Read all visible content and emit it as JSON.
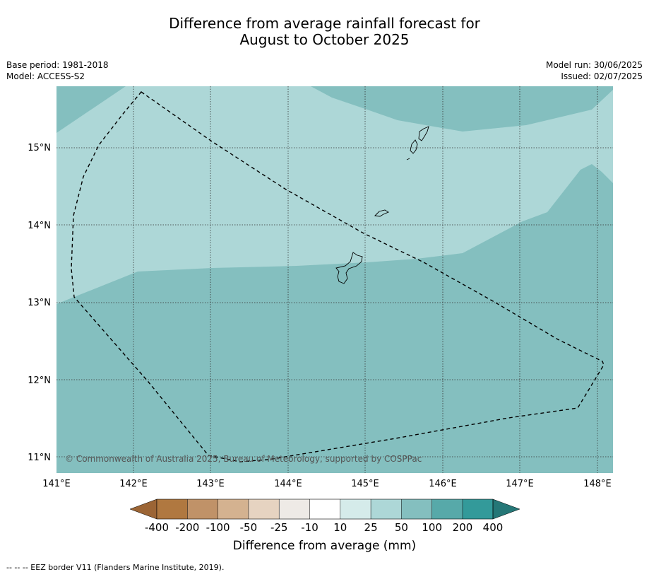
{
  "title_line1": "Difference from average rainfall forecast for",
  "title_line2": "August to October 2025",
  "base_period": "Base period: 1981-2018",
  "model": "Model: ACCESS-S2",
  "model_run": "Model run: 30/06/2025",
  "issued": "Issued: 02/07/2025",
  "copyright": "© Commonwealth of Australia 2025, Bureau of Meteorology, supported by COSPPac",
  "lon_labels": [
    "141°E",
    "142°E",
    "143°E",
    "144°E",
    "145°E",
    "146°E",
    "147°E",
    "148°E"
  ],
  "lat_labels": [
    "15°N",
    "14°N",
    "13°N",
    "12°N",
    "11°N"
  ],
  "colorbar": {
    "title": "Difference from average (mm)",
    "labels": [
      "-400",
      "-200",
      "-100",
      "-50",
      "-25",
      "-10",
      "10",
      "25",
      "50",
      "100",
      "200",
      "400"
    ],
    "colors": [
      "#9c6535",
      "#b07840",
      "#c09268",
      "#d4b290",
      "#e6d3c1",
      "#eeeae6",
      "#ffffff",
      "#d5ebea",
      "#add7d7",
      "#84bfbf",
      "#57a9a9",
      "#339a9a",
      "#257777"
    ]
  },
  "map_colors": {
    "class_25_50": "#add7d7",
    "class_50_100": "#84bfbf"
  },
  "footnote": "-- -- -- EEZ border V11 (Flanders Marine Institute, 2019)."
}
